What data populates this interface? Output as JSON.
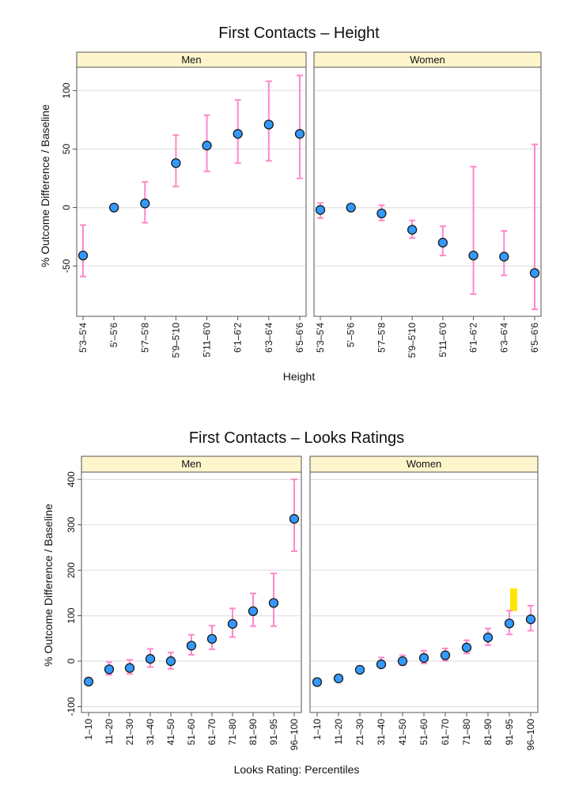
{
  "chart_data": [
    {
      "type": "scatter",
      "title": "First Contacts – Height",
      "xlabel": "Height",
      "ylabel": "% Outcome Difference / Baseline",
      "ylim": [
        -93,
        120
      ],
      "yticks": [
        -50,
        0,
        50,
        100
      ],
      "grid": true,
      "error_bars": true,
      "categories": [
        "5'3–5'4",
        "5'–5'6",
        "5'7–5'8",
        "5'9–5'10",
        "5'11–6'0",
        "6'1–6'2",
        "6'3–6'4",
        "6'5–6'6"
      ],
      "panels": [
        {
          "name": "Men",
          "values": [
            -41,
            0,
            3.5,
            38,
            53,
            63,
            71,
            63
          ],
          "lower": [
            -59,
            null,
            -13,
            18,
            31,
            38,
            40,
            25
          ],
          "upper": [
            -15,
            null,
            22,
            62,
            79,
            92,
            108,
            113
          ]
        },
        {
          "name": "Women",
          "values": [
            -2,
            0,
            -5,
            -19,
            -30,
            -41,
            -42,
            -56
          ],
          "lower": [
            -9,
            null,
            -11,
            -26,
            -41,
            -74,
            -58,
            -87
          ],
          "upper": [
            4,
            null,
            2,
            -11,
            -16,
            35,
            -20,
            54
          ]
        }
      ]
    },
    {
      "type": "scatter",
      "title": "First Contacts – Looks Ratings",
      "xlabel": "Looks Rating: Percentiles",
      "ylabel": "% Outcome Difference / Baseline",
      "ylim": [
        -113,
        416
      ],
      "yticks": [
        -100,
        0,
        100,
        200,
        300,
        400
      ],
      "grid": true,
      "error_bars": true,
      "categories": [
        "1–10",
        "11–20",
        "21–30",
        "31–40",
        "41–50",
        "51–60",
        "61–70",
        "71–80",
        "81–90",
        "91–95",
        "96–100"
      ],
      "panels": [
        {
          "name": "Men",
          "values": [
            -45,
            -18,
            -15,
            5,
            0,
            34,
            49,
            82,
            110,
            128,
            313
          ],
          "lower": [
            -52,
            -30,
            -28,
            -13,
            -17,
            14,
            26,
            53,
            77,
            77,
            242
          ],
          "upper": [
            -37,
            -2,
            3,
            27,
            19,
            58,
            78,
            116,
            149,
            193,
            400
          ]
        },
        {
          "name": "Women",
          "values": [
            -46,
            -38,
            -19,
            -7,
            0,
            7,
            13,
            30,
            52,
            83,
            92
          ],
          "lower": [
            -51,
            -43,
            -24,
            -13,
            -9,
            -5,
            1,
            17,
            35,
            59,
            67
          ],
          "upper": [
            -40,
            -31,
            -11,
            8,
            13,
            23,
            28,
            46,
            72,
            111,
            122
          ]
        }
      ],
      "highlight": {
        "panel": "Women",
        "category": "91–95",
        "y_range": [
          110,
          160
        ],
        "color": "#FFE600"
      }
    }
  ],
  "colors": {
    "point_fill": "#3399FF",
    "point_stroke": "#1a1a1a",
    "error_bar": "#FF88C8",
    "strip_bg": "#FFF5CC",
    "grid": "#E6E6E6",
    "frame": "#555555"
  }
}
